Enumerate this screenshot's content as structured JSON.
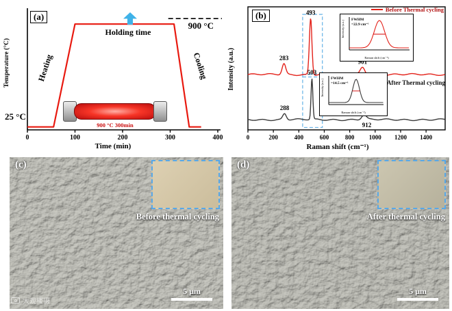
{
  "watermark": {
    "text": "大观楼摄"
  },
  "panel_a": {
    "tag": "(a)",
    "heating": "Heating",
    "holding": "Holding time",
    "cooling": "Cooling",
    "high_temp": "900 °C",
    "low_temp": "25 °C",
    "furnace_caption": "900 °C  300min"
  },
  "panel_b": {
    "tag": "(b)"
  },
  "panel_c": {
    "tag": "(c)",
    "caption": "Before thermal cycling",
    "scale_bar": "5 μm"
  },
  "panel_d": {
    "tag": "(d)",
    "caption": "After thermal cycling",
    "scale_bar": "5 μm"
  },
  "chart_data": [
    {
      "type": "line",
      "name": "thermal-cycling-temperature-profile",
      "title": "",
      "xlabel": "Time (min)",
      "ylabel": "Temperature (°C)",
      "xlim": [
        0,
        400
      ],
      "ylim": [
        0,
        1000
      ],
      "xticks": [
        0,
        100,
        200,
        300,
        400
      ],
      "grid": false,
      "line_color": "#e8190f",
      "dashed_reference_y": 900,
      "points": [
        [
          0,
          25
        ],
        [
          55,
          25
        ],
        [
          100,
          900
        ],
        [
          308,
          900
        ],
        [
          340,
          25
        ],
        [
          365,
          25
        ]
      ],
      "annotations": [
        "Heating",
        "Holding time",
        "Cooling",
        "900 °C",
        "25 °C",
        "900 °C  300min"
      ]
    },
    {
      "type": "line",
      "name": "raman-spectra",
      "title": "",
      "xlabel": "Raman shift (cm⁻¹)",
      "ylabel": "Intensity (a.u.)",
      "xlim": [
        0,
        1550
      ],
      "xticks": [
        0,
        200,
        400,
        600,
        800,
        1000,
        1200,
        1400
      ],
      "grid": false,
      "legend_position": "top-right",
      "highlight_color": "#6fb7e8",
      "highlight_boxes": [
        {
          "x0": 430,
          "x1": 585,
          "v0": 0.44,
          "v1": 0.96
        },
        {
          "x0": 430,
          "x1": 585,
          "v0": 0.02,
          "v1": 0.46
        }
      ],
      "series": [
        {
          "name": "Before Thermal cycling",
          "color": "#e32119",
          "baseline": 0.46,
          "peaks": [
            {
              "center": 283,
              "height": 0.09,
              "width": 14,
              "label": "283"
            },
            {
              "center": 493,
              "height": 0.47,
              "width": 10,
              "label": "493"
            },
            {
              "center": 901,
              "height": 0.06,
              "width": 18,
              "label": "901"
            }
          ]
        },
        {
          "name": "After Thermal cycling",
          "color": "#3a3a3a",
          "baseline": 0.085,
          "peaks": [
            {
              "center": 288,
              "height": 0.05,
              "width": 14,
              "label": "288"
            },
            {
              "center": 503,
              "height": 0.34,
              "width": 7,
              "label": "503",
              "dy": -6
            },
            {
              "center": 912,
              "height": 0.04,
              "width": 18,
              "label": "912",
              "dy": 18,
              "dx": 4
            }
          ]
        }
      ],
      "insets": [
        {
          "fwhm_label": "FWHM",
          "fwhm_value": "=22.9 cm⁻¹",
          "xlabel": "Raman shift (cm⁻¹)",
          "ylabel": "Intensity (a.u.)"
        },
        {
          "fwhm_label": "FWHM",
          "fwhm_value": "=14.5 cm⁻¹",
          "xlabel": "Raman shift (cm⁻¹)",
          "ylabel": "Intensity (a.u.)"
        }
      ]
    }
  ]
}
